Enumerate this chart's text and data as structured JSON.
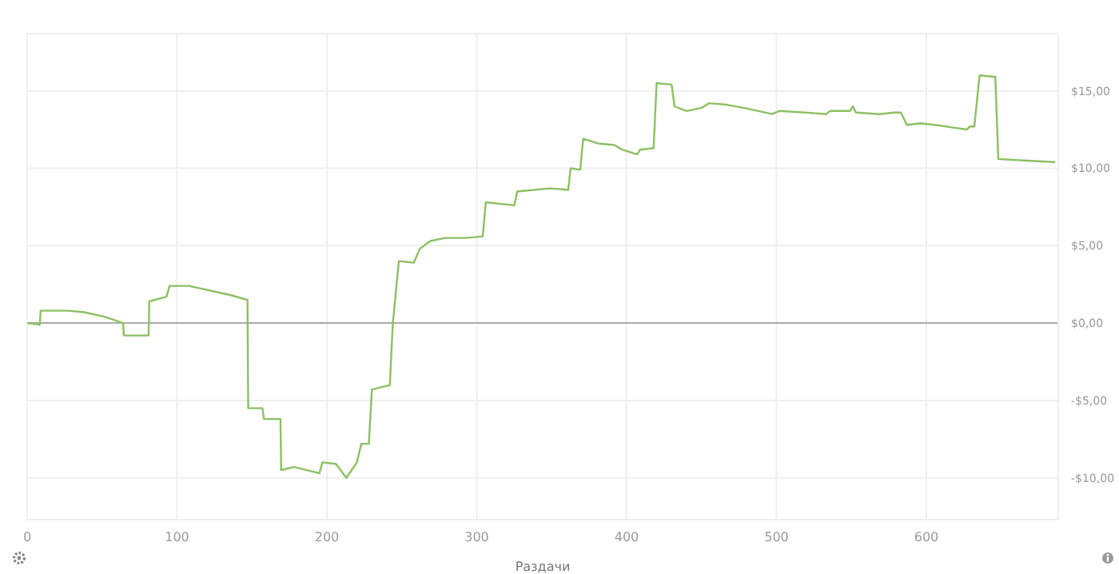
{
  "chart_data": {
    "type": "line",
    "xlabel": "Раздачи",
    "xlim": [
      0,
      688
    ],
    "ylim": [
      -12.7,
      18.7
    ],
    "xticks": [
      0,
      100,
      200,
      300,
      400,
      500,
      600
    ],
    "yticks": [
      {
        "value": -10,
        "label": "-$10,00"
      },
      {
        "value": -5,
        "label": "-$5,00"
      },
      {
        "value": 0,
        "label": "$0,00"
      },
      {
        "value": 5,
        "label": "$5,00"
      },
      {
        "value": 10,
        "label": "$10,00"
      },
      {
        "value": 15,
        "label": "$15,00"
      }
    ],
    "grid": true,
    "marker": "none",
    "line_style": "solid",
    "ref_lines": [
      {
        "axis": "y",
        "value": 0,
        "label": null,
        "color": "#aaaaaa"
      }
    ],
    "series": [
      {
        "color": "#8cc063",
        "x": [
          0,
          8.4,
          9,
          27,
          38,
          52,
          64,
          64.5,
          81,
          81.5,
          93,
          95,
          108,
          136,
          147,
          147.5,
          157,
          158,
          169,
          169.5,
          178,
          195,
          197,
          206,
          213,
          220,
          223,
          228,
          230,
          242,
          244,
          248,
          258,
          262,
          269,
          279,
          293,
          304,
          306,
          325,
          327,
          349,
          361,
          362.6,
          369,
          371,
          381,
          392,
          397,
          407,
          409,
          418,
          420,
          430,
          432,
          440,
          450,
          455,
          467,
          478,
          488,
          497,
          502,
          519,
          533,
          536,
          549,
          551,
          553,
          569,
          579,
          583,
          587,
          596,
          606,
          620,
          627,
          629,
          632,
          635.5,
          646,
          648,
          665,
          686
        ],
        "values": [
          0,
          -0.1,
          0.8,
          0.8,
          0.7,
          0.4,
          0,
          -0.8,
          -0.8,
          1.4,
          1.7,
          2.4,
          2.4,
          1.8,
          1.5,
          -5.5,
          -5.5,
          -6.2,
          -6.2,
          -9.5,
          -9.3,
          -9.7,
          -9,
          -9.1,
          -10,
          -9,
          -7.8,
          -7.8,
          -4.3,
          -4,
          0,
          4,
          3.9,
          4.8,
          5.3,
          5.5,
          5.5,
          5.6,
          7.8,
          7.6,
          8.5,
          8.7,
          8.6,
          10,
          9.9,
          11.9,
          11.6,
          11.5,
          11.2,
          10.9,
          11.2,
          11.3,
          15.5,
          15.4,
          14,
          13.7,
          13.9,
          14.2,
          14.1,
          13.9,
          13.7,
          13.5,
          13.7,
          13.6,
          13.5,
          13.7,
          13.7,
          14,
          13.6,
          13.5,
          13.6,
          13.6,
          12.8,
          12.9,
          12.8,
          12.6,
          12.5,
          12.7,
          12.7,
          16,
          15.9,
          10.6,
          10.5,
          10.4
        ]
      }
    ]
  }
}
